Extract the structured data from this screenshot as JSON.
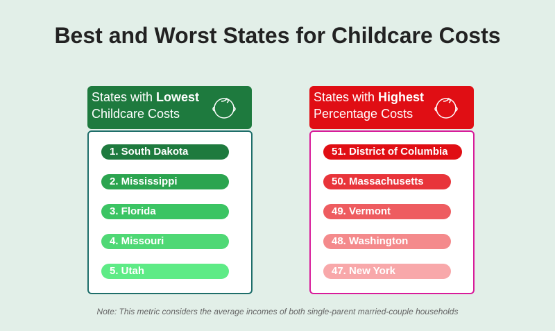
{
  "title": "Best and Worst States for Childcare Costs",
  "lowest": {
    "title_prefix": "States with ",
    "title_bold": "Lowest",
    "title_line2": "Childcare Costs",
    "icon": "baby-face-icon",
    "color": "#1e7a3e",
    "items": [
      {
        "label": "1.  South Dakota",
        "color": "#1e7a3e"
      },
      {
        "label": "2.  Mississippi",
        "color": "#2ba44f"
      },
      {
        "label": "3.  Florida",
        "color": "#3bc463"
      },
      {
        "label": "4.  Missouri",
        "color": "#4fd875"
      },
      {
        "label": "5.  Utah",
        "color": "#5eeb86"
      }
    ]
  },
  "highest": {
    "title_prefix": "States with ",
    "title_bold": "Highest",
    "title_line2": "Percentage Costs",
    "icon": "baby-face-icon",
    "color": "#e00e14",
    "items": [
      {
        "label": "51.  District of Columbia",
        "color": "#e00e14"
      },
      {
        "label": "50.  Massachusetts",
        "color": "#e8343a"
      },
      {
        "label": "49.  Vermont",
        "color": "#ee5c60"
      },
      {
        "label": "48.  Washington",
        "color": "#f48a8c"
      },
      {
        "label": "47.  New York",
        "color": "#f8a8aa"
      }
    ]
  },
  "note": "Note: This metric considers the average incomes of both single-parent married-couple households"
}
